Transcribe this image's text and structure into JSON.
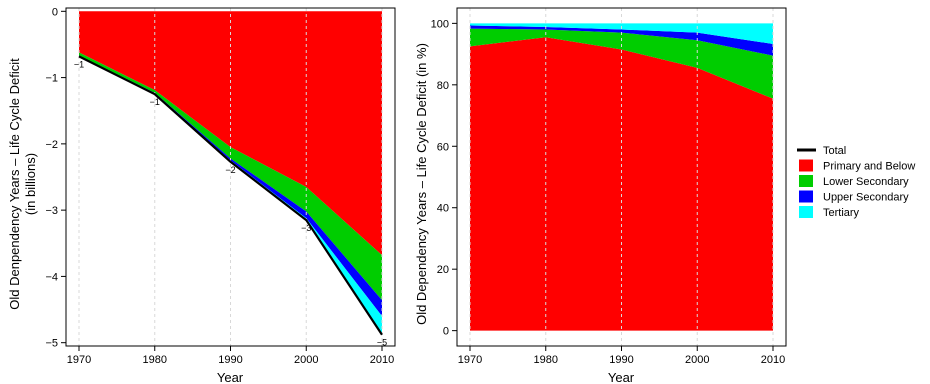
{
  "chart_data": [
    {
      "type": "area",
      "ylabel": "Old Denpendency Years – Life Cycle Deficit",
      "ylabel_line2": "(in billions)",
      "xlabel": "Year",
      "x": [
        1970,
        1980,
        1990,
        2000,
        2010
      ],
      "x_ticks": [
        "1970",
        "1980",
        "1990",
        "2000",
        "2010"
      ],
      "ylim": [
        -5.05,
        0.05
      ],
      "y_ticks": [
        0,
        -1,
        -2,
        -3,
        -4,
        -5
      ],
      "y_tick_labels": [
        "0",
        "−1",
        "−2",
        "−3",
        "−4",
        "−5"
      ],
      "grid": true,
      "series": [
        {
          "name": "Primary and Below",
          "color": "#FF0000",
          "values": [
            -0.62,
            -1.19,
            -2.05,
            -2.65,
            -3.68
          ]
        },
        {
          "name": "Lower Secondary",
          "color": "#00CD00",
          "values": [
            -0.05,
            -0.04,
            -0.17,
            -0.37,
            -0.68
          ]
        },
        {
          "name": "Upper Secondary",
          "color": "#0000FF",
          "values": [
            -0.01,
            -0.01,
            -0.03,
            -0.1,
            -0.24
          ]
        },
        {
          "name": "Tertiary",
          "color": "#00FFFF",
          "values": [
            0.0,
            -0.01,
            -0.02,
            -0.03,
            -0.28
          ]
        }
      ],
      "total": {
        "name": "Total",
        "color": "#000000",
        "values": [
          -0.68,
          -1.25,
          -2.27,
          -3.15,
          -4.88
        ]
      },
      "point_labels": [
        "−1",
        "−1",
        "−2",
        "−3",
        "−5"
      ]
    },
    {
      "type": "area",
      "ylabel": "Old Dependency Years – Life Cycle Deficit (in %)",
      "xlabel": "Year",
      "x": [
        1970,
        1980,
        1990,
        2000,
        2010
      ],
      "x_ticks": [
        "1970",
        "1980",
        "1990",
        "2000",
        "2010"
      ],
      "ylim": [
        -5,
        105
      ],
      "y_ticks": [
        0,
        20,
        40,
        60,
        80,
        100
      ],
      "y_tick_labels": [
        "0",
        "20",
        "40",
        "60",
        "80",
        "100"
      ],
      "grid": true,
      "series": [
        {
          "name": "Primary and Below",
          "color": "#FF0000",
          "values": [
            92.5,
            95.5,
            91.5,
            85.5,
            75.5
          ]
        },
        {
          "name": "Lower Secondary",
          "color": "#00CD00",
          "values": [
            5.8,
            2.5,
            5.5,
            9.0,
            14.0
          ]
        },
        {
          "name": "Upper Secondary",
          "color": "#0000FF",
          "values": [
            1.0,
            0.8,
            1.0,
            2.5,
            3.8
          ]
        },
        {
          "name": "Tertiary",
          "color": "#00FFFF",
          "values": [
            0.7,
            1.2,
            2.0,
            3.0,
            6.7
          ]
        }
      ]
    }
  ],
  "legend": {
    "items": [
      {
        "label": "Total",
        "color": "#000000",
        "kind": "line"
      },
      {
        "label": "Primary and Below",
        "color": "#FF0000",
        "kind": "box"
      },
      {
        "label": "Lower Secondary",
        "color": "#00CD00",
        "kind": "box"
      },
      {
        "label": "Upper Secondary",
        "color": "#0000FF",
        "kind": "box"
      },
      {
        "label": "Tertiary",
        "color": "#00FFFF",
        "kind": "box"
      }
    ]
  }
}
